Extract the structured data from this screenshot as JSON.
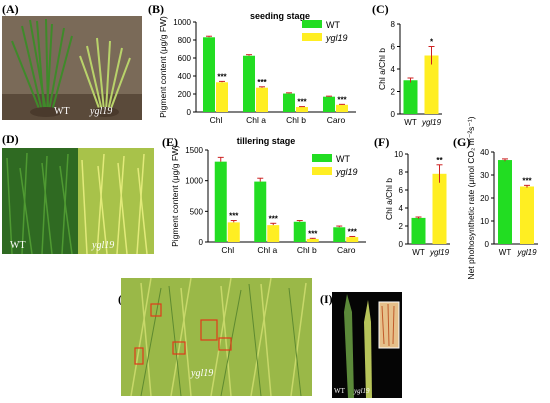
{
  "colors": {
    "wt": "#22dd22",
    "ygl19": "#ffee22",
    "error": "#cc2222"
  },
  "panels": {
    "A": {
      "label": "(A)",
      "wt_text": "WT",
      "mut_text": "ygl19"
    },
    "D": {
      "label": "(D)",
      "wt_text": "WT",
      "mut_text": "ygl19"
    },
    "H": {
      "label": "(H)",
      "mut_text": "ygl19"
    },
    "I": {
      "label": "(I)",
      "wt_text": "WT",
      "mut_text": "ygl19"
    }
  },
  "chart_data": [
    {
      "panel": "(B)",
      "type": "bar",
      "title": "seeding stage",
      "ylabel": "Pigment content (μg/g FW)",
      "categories": [
        "Chl",
        "Chl a",
        "Chl b",
        "Caro"
      ],
      "series": [
        {
          "name": "WT",
          "values": [
            830,
            625,
            205,
            170
          ]
        },
        {
          "name": "ygl19",
          "values": [
            330,
            270,
            55,
            80
          ]
        }
      ],
      "errors": [
        [
          12,
          12,
          8,
          6
        ],
        [
          10,
          10,
          5,
          5
        ]
      ],
      "significance": [
        "***",
        "***",
        "***",
        "***"
      ],
      "yticks": [
        0,
        200,
        400,
        600,
        800,
        1000
      ],
      "ylim": [
        0,
        1000
      ],
      "legend": "top-right"
    },
    {
      "panel": "(C)",
      "type": "bar",
      "ylabel": "Chl a/Chl b",
      "categories": [
        "WT",
        "ygl19"
      ],
      "values": [
        3.0,
        5.2
      ],
      "errors": [
        0.2,
        0.8
      ],
      "significance": [
        "",
        "*"
      ],
      "yticks": [
        0,
        2,
        4,
        6,
        8
      ],
      "ylim": [
        0,
        8
      ]
    },
    {
      "panel": "(E)",
      "type": "bar",
      "title": "tillering stage",
      "ylabel": "Pigment content (μg/g FW)",
      "categories": [
        "Chl",
        "Chl a",
        "Chl b",
        "Caro"
      ],
      "series": [
        {
          "name": "WT",
          "values": [
            1310,
            985,
            330,
            240
          ]
        },
        {
          "name": "ygl19",
          "values": [
            320,
            275,
            50,
            80
          ]
        }
      ],
      "errors": [
        [
          70,
          55,
          20,
          20
        ],
        [
          30,
          30,
          10,
          10
        ]
      ],
      "significance": [
        "***",
        "***",
        "***",
        "***"
      ],
      "yticks": [
        0,
        500,
        1000,
        1500
      ],
      "ylim": [
        0,
        1500
      ],
      "legend": "top-right"
    },
    {
      "panel": "(F)",
      "type": "bar",
      "ylabel": "Chl a/Chl b",
      "categories": [
        "WT",
        "ygl19"
      ],
      "values": [
        2.9,
        7.8
      ],
      "errors": [
        0.1,
        1.0
      ],
      "significance": [
        "",
        "**"
      ],
      "yticks": [
        0,
        2,
        4,
        6,
        8,
        10
      ],
      "ylim": [
        0,
        10
      ]
    },
    {
      "panel": "(G)",
      "type": "bar",
      "ylabel": "Net phohosynthetic rate (μmol CO₂ m⁻²s⁻¹)",
      "categories": [
        "WT",
        "ygl19"
      ],
      "values": [
        36.5,
        25.0
      ],
      "errors": [
        0.5,
        0.5
      ],
      "significance": [
        "",
        "***"
      ],
      "yticks": [
        0,
        10,
        20,
        30,
        40
      ],
      "ylim": [
        0,
        40
      ]
    }
  ]
}
